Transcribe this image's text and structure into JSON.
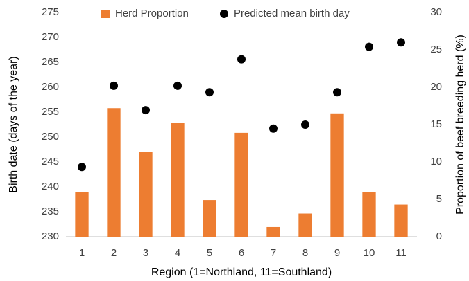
{
  "chart_data": {
    "type": "bar",
    "x_label": "Region (1=Northland, 11=Southland)",
    "y_label": "Birth date (days of the year)",
    "y2_label": "Proportion of beef breeding herd (%)",
    "categories": [
      "1",
      "2",
      "3",
      "4",
      "5",
      "6",
      "7",
      "8",
      "9",
      "10",
      "11"
    ],
    "series": [
      {
        "name": "Herd Proportion",
        "type": "bar",
        "axis": "y2",
        "color": "#ed7d31",
        "values": [
          6.0,
          17.2,
          11.3,
          15.2,
          4.9,
          13.9,
          1.3,
          3.1,
          16.5,
          6.0,
          4.3
        ]
      },
      {
        "name": "Predicted mean birth day",
        "type": "scatter",
        "color": "#000000",
        "values": [
          244.0,
          260.3,
          255.4,
          260.3,
          259.0,
          265.6,
          251.7,
          252.5,
          259.0,
          268.1,
          269.0
        ]
      }
    ],
    "ylim": [
      230,
      275
    ],
    "yticks": [
      230,
      235,
      240,
      245,
      250,
      255,
      260,
      265,
      270,
      275
    ],
    "y2lim": [
      0,
      30
    ],
    "y2ticks": [
      0,
      5,
      10,
      15,
      20,
      25,
      30
    ],
    "grid": false,
    "legend": "top"
  }
}
